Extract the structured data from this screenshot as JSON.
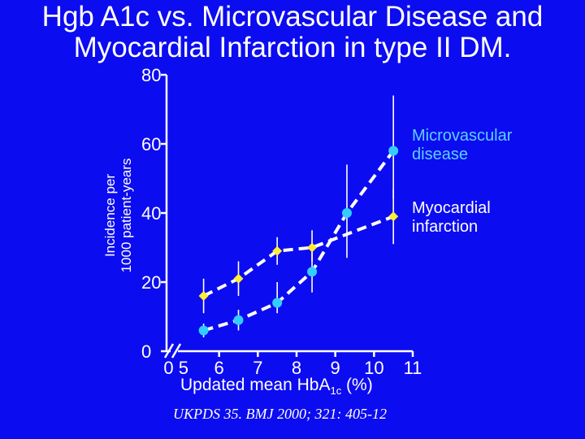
{
  "title": {
    "line1": "Hgb A1c vs. Microvascular Disease and",
    "line2": "Myocardial Infarction in type II DM."
  },
  "citation": "UKPDS 35. BMJ 2000; 321: 405-12",
  "colors": {
    "background": "#0c0cf0",
    "microvascular": "#33ccff",
    "myocardial": "#ffee33",
    "axis": "#ffffff"
  },
  "chart_data": {
    "type": "line",
    "title": "Hgb A1c vs. Microvascular Disease and Myocardial Infarction in type II DM.",
    "xlabel": {
      "prefix": "Updated mean Hb",
      "main": "A",
      "sub": "1c",
      "suffix": " (%)"
    },
    "ylabel": {
      "line1": "Incidence per",
      "line2": "1000 patient-years"
    },
    "xlim": [
      5,
      11
    ],
    "ylim": [
      0,
      80
    ],
    "x_axis_break": true,
    "x_ticks": [
      5,
      6,
      7,
      8,
      9,
      10,
      11
    ],
    "x_tick_labels": [
      "0  5",
      "6",
      "7",
      "8",
      "9",
      "10",
      "11"
    ],
    "y_ticks": [
      0,
      20,
      40,
      60,
      80
    ],
    "y_tick_labels": [
      "0",
      "20",
      "40",
      "60",
      "80"
    ],
    "grid": false,
    "legend": "direct labels at right end of lines",
    "series": [
      {
        "name": "Microvascular disease",
        "label_lines": [
          "Microvascular",
          "disease"
        ],
        "color": "#33ccff",
        "marker": "circle",
        "x": [
          5.6,
          6.5,
          7.5,
          8.4,
          9.3,
          10.5
        ],
        "y": [
          6,
          9,
          14,
          23,
          40,
          58
        ],
        "ci_low": [
          4,
          6,
          11,
          17,
          27,
          44
        ],
        "ci_high": [
          8,
          12,
          20,
          31,
          54,
          74
        ]
      },
      {
        "name": "Myocardial infarction",
        "label_lines": [
          "Myocardial",
          "infarction"
        ],
        "color": "#ffee33",
        "marker": "diamond",
        "x": [
          5.6,
          6.5,
          7.5,
          8.4,
          10.5
        ],
        "y": [
          16,
          21,
          29,
          30,
          39
        ],
        "ci_low": [
          11,
          16,
          25,
          26,
          31
        ],
        "ci_high": [
          21,
          26,
          33,
          35,
          47
        ]
      }
    ]
  }
}
